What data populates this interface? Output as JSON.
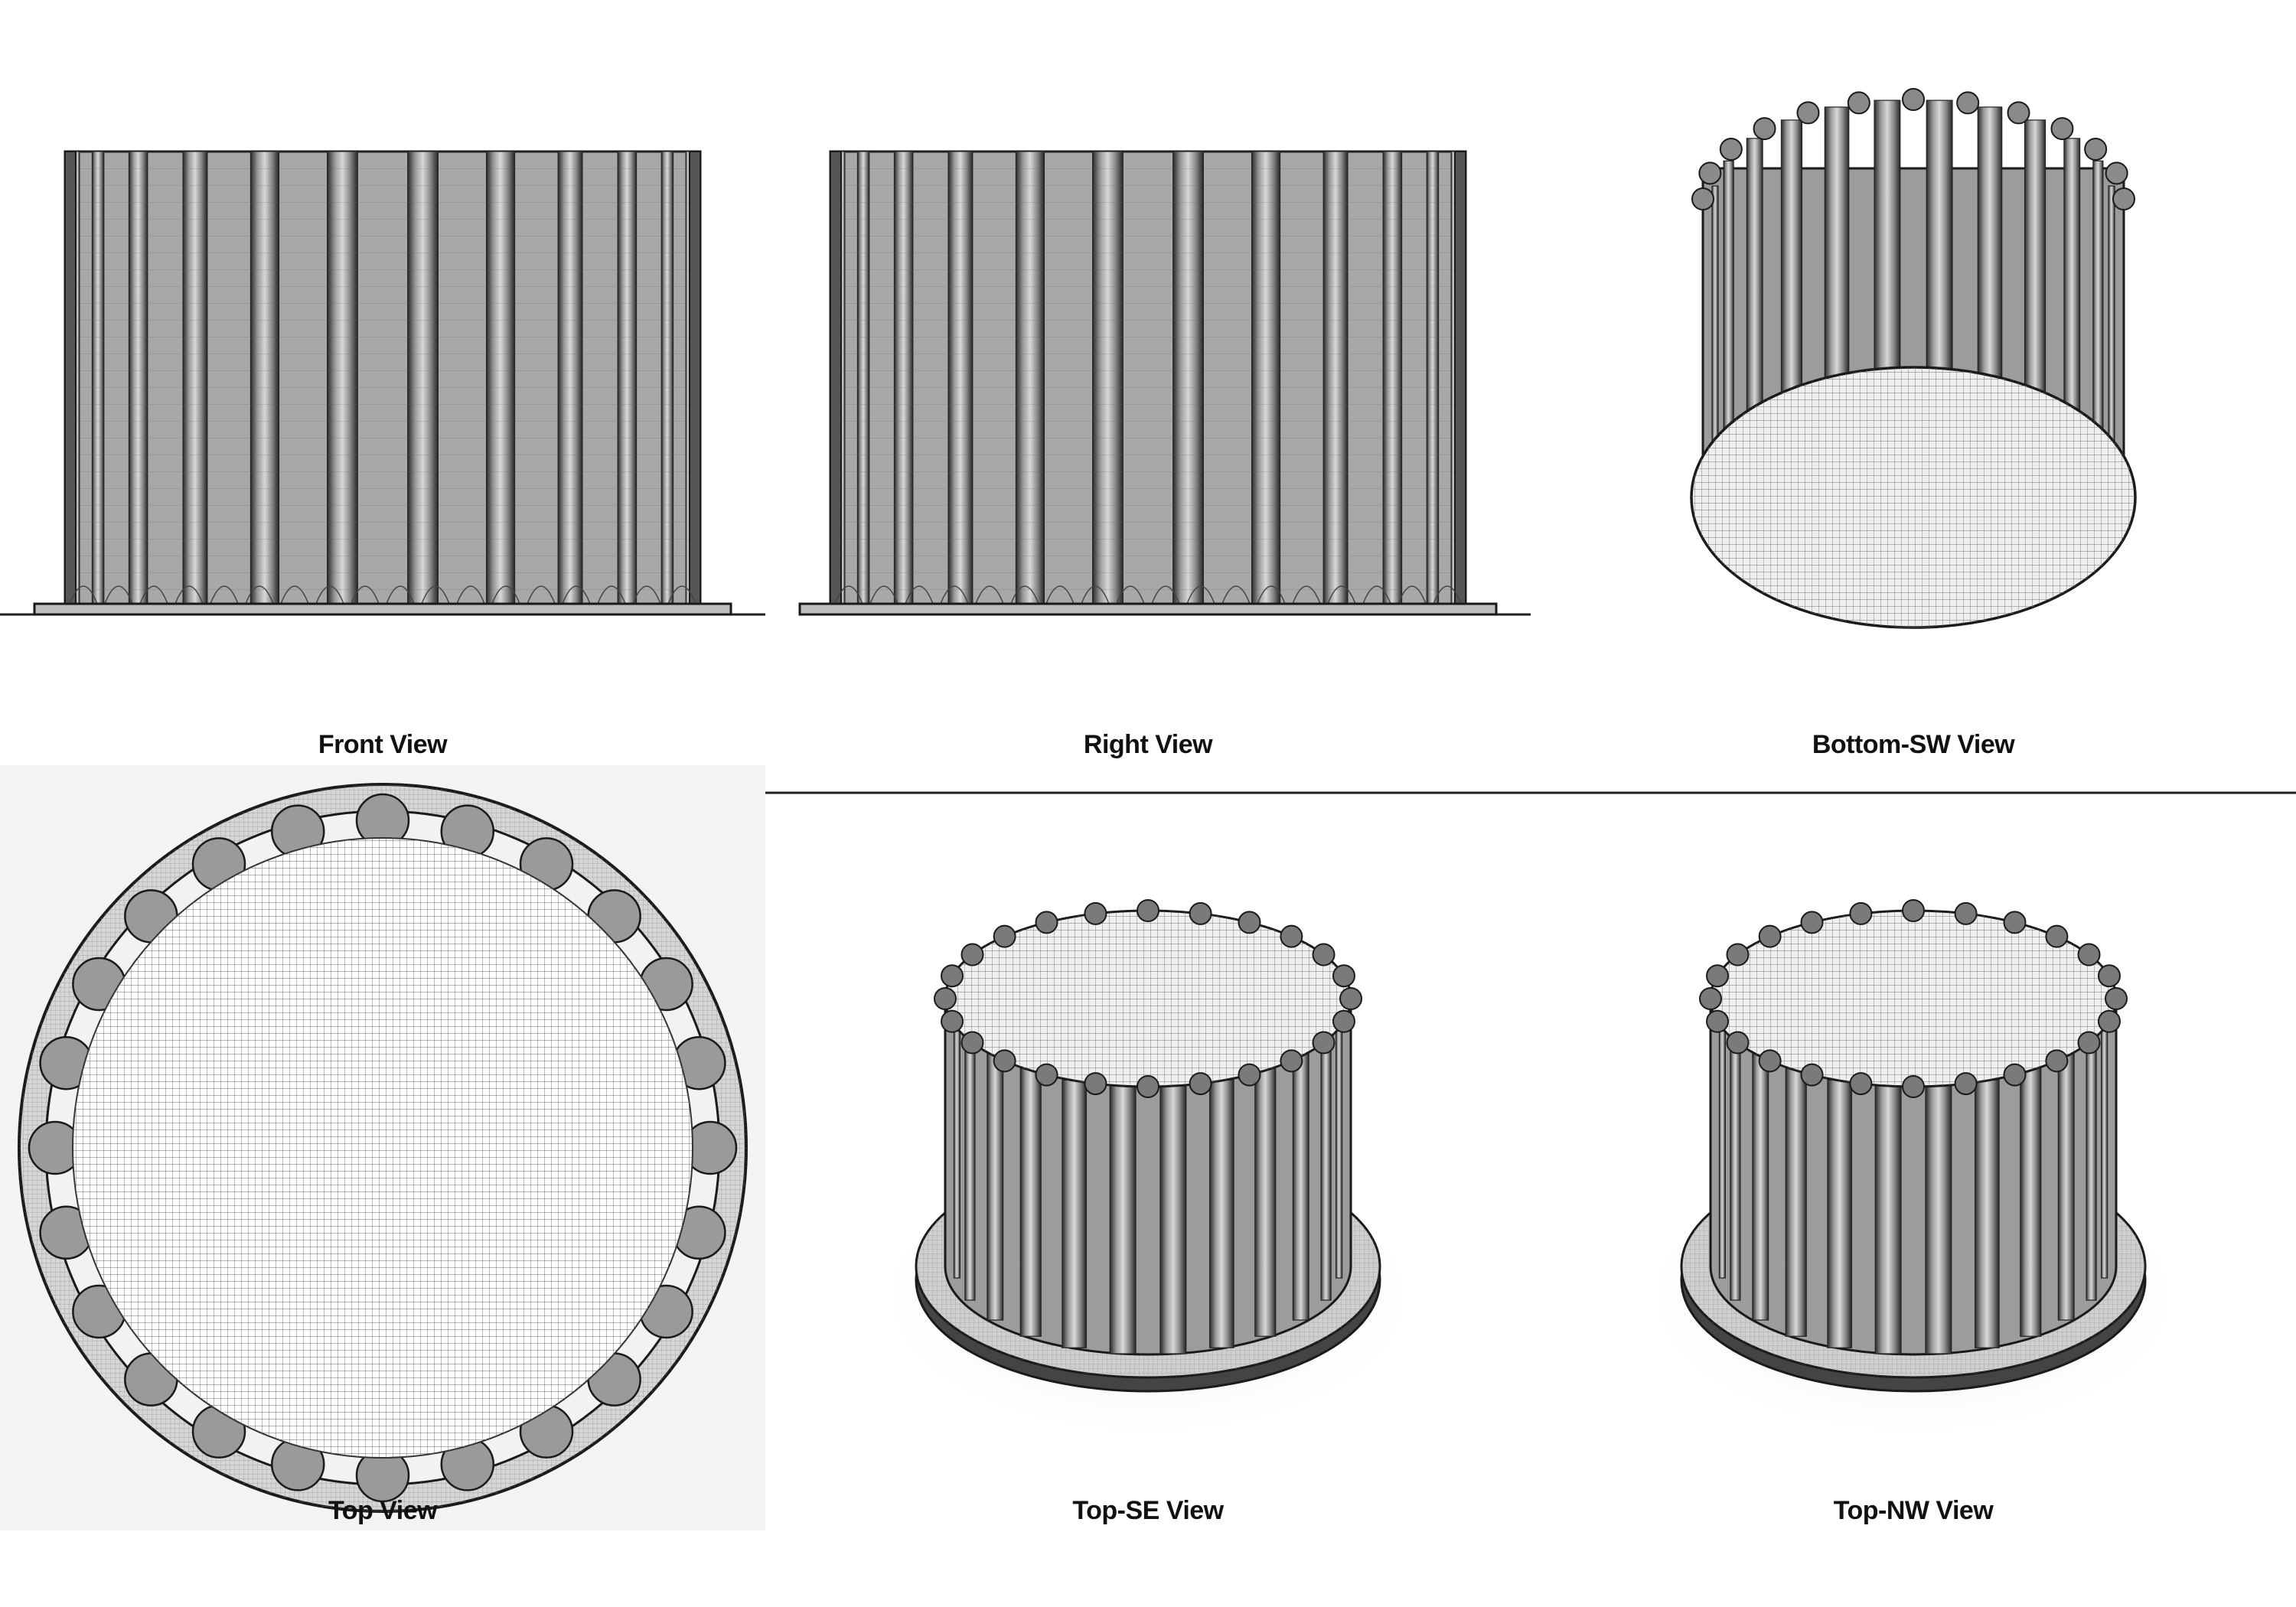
{
  "views": [
    {
      "id": "front",
      "label": "Front View"
    },
    {
      "id": "right",
      "label": "Right View"
    },
    {
      "id": "bottom-sw",
      "label": "Bottom-SW View"
    },
    {
      "id": "top",
      "label": "Top View"
    },
    {
      "id": "top-se",
      "label": "Top-SE View"
    },
    {
      "id": "top-nw",
      "label": "Top-NW View"
    }
  ],
  "colors": {
    "outline": "#1a1a1a",
    "flute_dark": "#3a3a3a",
    "flute_mid": "#8a8a8a",
    "flute_light": "#c8c8c8",
    "mesh": "#555555",
    "face": "#ececec"
  },
  "model": {
    "flute_count": 24
  }
}
